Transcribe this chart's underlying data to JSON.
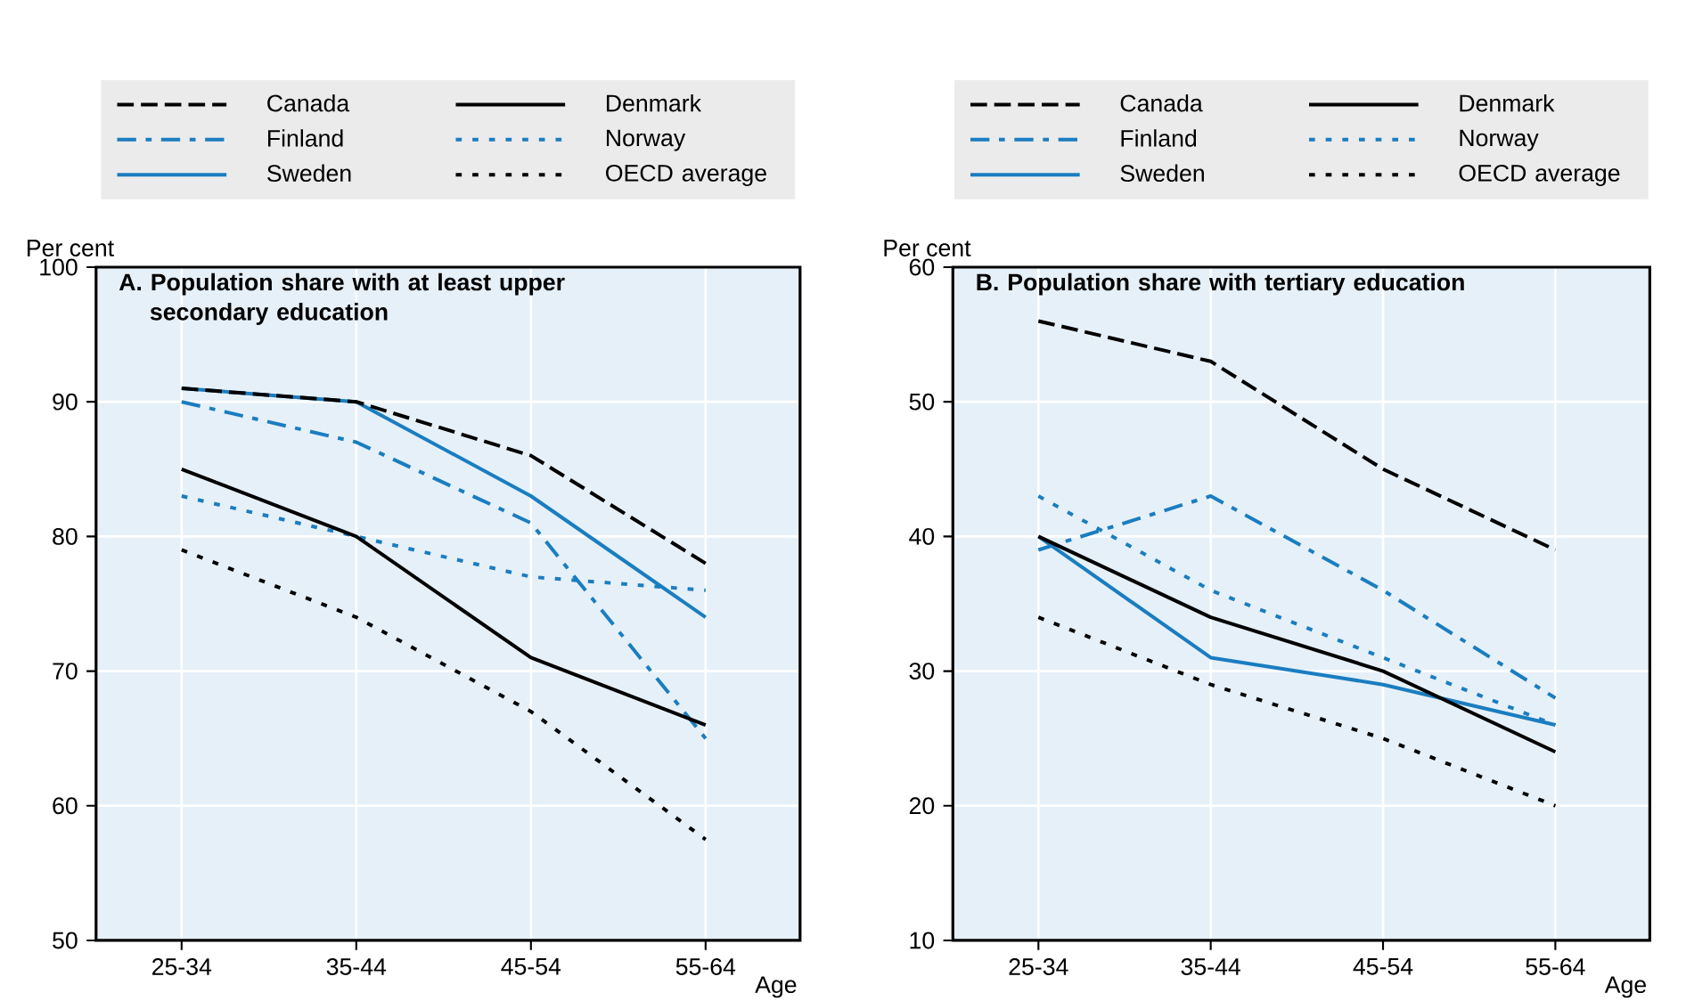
{
  "chart_data": [
    {
      "type": "line",
      "title": "A. Population share with at least upper secondary education",
      "ylabel": "Per cent",
      "xlabel": "Age",
      "categories": [
        "25-34",
        "35-44",
        "45-54",
        "55-64"
      ],
      "ylim": [
        50,
        100
      ],
      "yticks": [
        50,
        60,
        70,
        80,
        90,
        100
      ],
      "grid": true,
      "legend": "top",
      "series": [
        {
          "name": "Canada",
          "color": "#000000",
          "line_style": "dashed",
          "values": [
            91,
            90,
            86,
            78
          ]
        },
        {
          "name": "Denmark",
          "color": "#000000",
          "line_style": "solid",
          "values": [
            85,
            80,
            71,
            66
          ]
        },
        {
          "name": "Finland",
          "color": "#1a7dc0",
          "line_style": "dashdot",
          "values": [
            90,
            87,
            81,
            65
          ]
        },
        {
          "name": "Norway",
          "color": "#1a7dc0",
          "line_style": "dotted",
          "values": [
            83,
            80,
            77,
            76
          ]
        },
        {
          "name": "Sweden",
          "color": "#1a7dc0",
          "line_style": "solid",
          "values": [
            91,
            90,
            83,
            74
          ]
        },
        {
          "name": "OECD average",
          "color": "#000000",
          "line_style": "dotted",
          "values": [
            79,
            74,
            67,
            57.5
          ]
        }
      ]
    },
    {
      "type": "line",
      "title": "B. Population share with tertiary education",
      "ylabel": "Per cent",
      "xlabel": "Age",
      "categories": [
        "25-34",
        "35-44",
        "45-54",
        "55-64"
      ],
      "ylim": [
        10,
        60
      ],
      "yticks": [
        10,
        20,
        30,
        40,
        50,
        60
      ],
      "grid": true,
      "legend": "top",
      "series": [
        {
          "name": "Canada",
          "color": "#000000",
          "line_style": "dashed",
          "values": [
            56,
            53,
            45,
            39
          ]
        },
        {
          "name": "Denmark",
          "color": "#000000",
          "line_style": "solid",
          "values": [
            40,
            34,
            30,
            24
          ]
        },
        {
          "name": "Finland",
          "color": "#1a7dc0",
          "line_style": "dashdot",
          "values": [
            39,
            43,
            36,
            28
          ]
        },
        {
          "name": "Norway",
          "color": "#1a7dc0",
          "line_style": "dotted",
          "values": [
            43,
            36,
            31,
            26
          ]
        },
        {
          "name": "Sweden",
          "color": "#1a7dc0",
          "line_style": "solid",
          "values": [
            40,
            31,
            29,
            26
          ]
        },
        {
          "name": "OECD average",
          "color": "#000000",
          "line_style": "dotted",
          "values": [
            34,
            29,
            25,
            20
          ]
        }
      ]
    }
  ]
}
